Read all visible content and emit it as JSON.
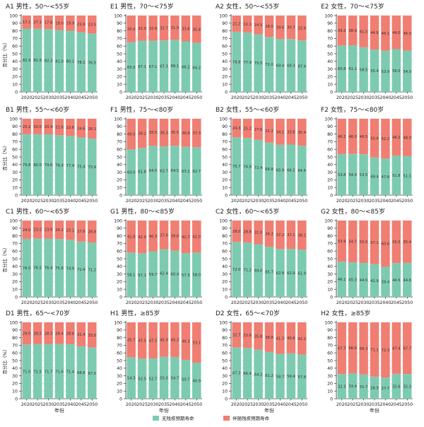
{
  "colors": {
    "disability_free": "#7ccbb0",
    "with_disability": "#f07e72",
    "axis": "#333333",
    "grid": "#999999"
  },
  "legend": {
    "disability_free": "无残疾预期寿命",
    "with_disability": "伴随残疾预期寿命"
  },
  "shared": {
    "ylabel": "百分比（%）",
    "xlabel": "年份",
    "years": [
      "2020",
      "2025",
      "2030",
      "2035",
      "2040",
      "2045",
      "2050"
    ],
    "yticks": [
      0,
      10,
      20,
      30,
      40,
      50,
      60,
      70,
      80,
      90,
      100
    ]
  },
  "chart_data": [
    {
      "type": "bar",
      "stacked": true,
      "title": "A1 男性，50～<55岁",
      "categories": [
        "2020",
        "2025",
        "2030",
        "2035",
        "2040",
        "2045",
        "2050"
      ],
      "ylim": [
        0,
        100
      ],
      "series": [
        {
          "name": "无残疾预期寿命",
          "values": [
            82.9,
            82.9,
            82.2,
            81.0,
            80.1,
            78.1,
            76.5
          ]
        },
        {
          "name": "伴随残疾预期寿命",
          "values": [
            17.1,
            17.1,
            17.8,
            19.0,
            19.9,
            21.9,
            23.5
          ]
        }
      ]
    },
    {
      "type": "bar",
      "stacked": true,
      "title": "E1 男性，70～<75岁",
      "categories": [
        "2020",
        "2025",
        "2030",
        "2035",
        "2040",
        "2045",
        "2050"
      ],
      "ylim": [
        0,
        100
      ],
      "series": [
        {
          "name": "无残疾预期寿命",
          "values": [
            65.0,
            67.1,
            67.1,
            67.3,
            68.1,
            66.2,
            64.2
          ]
        },
        {
          "name": "伴随残疾预期寿命",
          "values": [
            35.0,
            32.9,
            32.9,
            32.7,
            31.9,
            33.8,
            35.8
          ]
        }
      ]
    },
    {
      "type": "bar",
      "stacked": true,
      "title": "A2 女性，50～<55岁",
      "categories": [
        "2020",
        "2025",
        "2030",
        "2035",
        "2040",
        "2045",
        "2050"
      ],
      "ylim": [
        0,
        100
      ],
      "series": [
        {
          "name": "无残疾预期寿命",
          "values": [
            78.8,
            77.9,
            75.5,
            72.0,
            69.4,
            69.3,
            67.4
          ]
        },
        {
          "name": "伴随残疾预期寿命",
          "values": [
            21.2,
            22.1,
            24.5,
            28.0,
            30.6,
            30.7,
            32.6
          ]
        }
      ]
    },
    {
      "type": "bar",
      "stacked": true,
      "title": "E2 女性，70～<75岁",
      "categories": [
        "2020",
        "2025",
        "2030",
        "2035",
        "2040",
        "2045",
        "2050"
      ],
      "ylim": [
        0,
        100
      ],
      "series": [
        {
          "name": "无残疾预期寿命",
          "values": [
            60.8,
            61.1,
            58.5,
            55.4,
            53.9,
            56.0,
            54.0
          ]
        },
        {
          "name": "伴随残疾预期寿命",
          "values": [
            39.2,
            38.9,
            41.5,
            44.6,
            46.1,
            44.0,
            46.0
          ]
        }
      ]
    },
    {
      "type": "bar",
      "stacked": true,
      "title": "B1 男性，55～<60岁",
      "categories": [
        "2020",
        "2025",
        "2030",
        "2035",
        "2040",
        "2045",
        "2050"
      ],
      "ylim": [
        0,
        100
      ],
      "series": [
        {
          "name": "无残疾预期寿命",
          "values": [
            79.8,
            80.0,
            79.6,
            78.4,
            77.4,
            75.4,
            73.9
          ]
        },
        {
          "name": "伴随残疾预期寿命",
          "values": [
            20.2,
            20.0,
            20.4,
            21.6,
            22.6,
            24.6,
            26.1
          ]
        }
      ]
    },
    {
      "type": "bar",
      "stacked": true,
      "title": "F1 男性，75～<80岁",
      "categories": [
        "2020",
        "2025",
        "2030",
        "2035",
        "2040",
        "2045",
        "2050"
      ],
      "ylim": [
        0,
        100
      ],
      "series": [
        {
          "name": "无残疾预期寿命",
          "values": [
            60.0,
            61.8,
            64.5,
            63.7,
            64.5,
            63.1,
            62.7
          ]
        },
        {
          "name": "伴随残疾预期寿命",
          "values": [
            40.0,
            38.2,
            35.5,
            36.3,
            35.5,
            36.9,
            37.3
          ]
        }
      ]
    },
    {
      "type": "bar",
      "stacked": true,
      "title": "B2 女性，55～<60岁",
      "categories": [
        "2020",
        "2025",
        "2030",
        "2035",
        "2040",
        "2045",
        "2050"
      ],
      "ylim": [
        0,
        100
      ],
      "series": [
        {
          "name": "无残疾预期寿命",
          "values": [
            75.7,
            74.8,
            72.4,
            68.8,
            65.9,
            66.2,
            64.6
          ]
        },
        {
          "name": "伴随残疾预期寿命",
          "values": [
            24.3,
            25.2,
            27.6,
            31.2,
            34.1,
            33.8,
            35.4
          ]
        }
      ]
    },
    {
      "type": "bar",
      "stacked": true,
      "title": "F2 女性，75～<80岁",
      "categories": [
        "2020",
        "2025",
        "2030",
        "2035",
        "2040",
        "2045",
        "2050"
      ],
      "ylim": [
        0,
        100
      ],
      "series": [
        {
          "name": "无残疾预期寿命",
          "values": [
            53.8,
            54.0,
            53.5,
            49.4,
            47.8,
            51.8,
            51.1
          ]
        },
        {
          "name": "伴随残疾预期寿命",
          "values": [
            46.2,
            46.0,
            46.5,
            50.6,
            52.2,
            48.2,
            48.9
          ]
        }
      ]
    },
    {
      "type": "bar",
      "stacked": true,
      "title": "C1 男性，60～<65岁",
      "categories": [
        "2020",
        "2025",
        "2030",
        "2035",
        "2040",
        "2045",
        "2050"
      ],
      "ylim": [
        0,
        100
      ],
      "series": [
        {
          "name": "无残疾预期寿命",
          "values": [
            76.0,
            76.5,
            76.4,
            75.8,
            74.9,
            72.4,
            71.2
          ]
        },
        {
          "name": "伴随残疾预期寿命",
          "values": [
            24.0,
            23.5,
            23.6,
            24.2,
            25.1,
            27.6,
            28.8
          ]
        }
      ]
    },
    {
      "type": "bar",
      "stacked": true,
      "title": "G1 男性，80～<85岁",
      "categories": [
        "2020",
        "2025",
        "2030",
        "2035",
        "2040",
        "2045",
        "2050"
      ],
      "ylim": [
        0,
        100
      ],
      "series": [
        {
          "name": "无残疾预期寿命",
          "values": [
            58.1,
            57.1,
            59.7,
            62.4,
            60.4,
            57.3,
            58.0
          ]
        },
        {
          "name": "伴随残疾预期寿命",
          "values": [
            41.9,
            42.9,
            40.3,
            37.6,
            39.6,
            42.7,
            42.0
          ]
        }
      ]
    },
    {
      "type": "bar",
      "stacked": true,
      "title": "C2 女性，60～<65岁",
      "categories": [
        "2020",
        "2025",
        "2030",
        "2035",
        "2040",
        "2045",
        "2050"
      ],
      "ylim": [
        0,
        100
      ],
      "series": [
        {
          "name": "无残疾预期寿命",
          "values": [
            72.0,
            71.2,
            69.0,
            65.7,
            62.8,
            62.9,
            61.9
          ]
        },
        {
          "name": "伴随残疾预期寿命",
          "values": [
            28.0,
            28.8,
            31.0,
            34.3,
            37.2,
            37.1,
            38.1
          ]
        }
      ]
    },
    {
      "type": "bar",
      "stacked": true,
      "title": "G2 女性，80～<85岁",
      "categories": [
        "2020",
        "2025",
        "2030",
        "2035",
        "2040",
        "2045",
        "2050"
      ],
      "ylim": [
        0,
        100
      ],
      "series": [
        {
          "name": "无残疾预期寿命",
          "values": [
            46.1,
            45.3,
            44.5,
            42.9,
            39.4,
            44.5,
            44.6
          ]
        },
        {
          "name": "伴随残疾预期寿命",
          "values": [
            53.9,
            54.7,
            55.5,
            57.1,
            60.6,
            55.5,
            55.4
          ]
        }
      ]
    },
    {
      "type": "bar",
      "stacked": true,
      "title": "D1 男性，65～<70岁",
      "categories": [
        "2020",
        "2025",
        "2030",
        "2035",
        "2040",
        "2045",
        "2050"
      ],
      "ylim": [
        0,
        100
      ],
      "series": [
        {
          "name": "无残疾预期寿命",
          "values": [
            71.0,
            71.5,
            71.7,
            71.6,
            71.4,
            68.6,
            67.0
          ]
        },
        {
          "name": "伴随残疾预期寿命",
          "values": [
            29.0,
            28.5,
            28.3,
            28.4,
            28.6,
            31.4,
            33.0
          ]
        }
      ]
    },
    {
      "type": "bar",
      "stacked": true,
      "title": "H1 男性，≥85岁",
      "categories": [
        "2020",
        "2025",
        "2030",
        "2035",
        "2040",
        "2045",
        "2050"
      ],
      "ylim": [
        0,
        100
      ],
      "series": [
        {
          "name": "无残疾预期寿命",
          "values": [
            54.3,
            52.5,
            52.7,
            55.0,
            54.7,
            50.7,
            46.9
          ]
        },
        {
          "name": "伴随残疾预期寿命",
          "values": [
            45.7,
            47.5,
            47.3,
            45.0,
            45.3,
            49.3,
            53.1
          ]
        }
      ]
    },
    {
      "type": "bar",
      "stacked": true,
      "title": "D2 女性，65～<70岁",
      "categories": [
        "2020",
        "2025",
        "2030",
        "2035",
        "2040",
        "2045",
        "2050"
      ],
      "ylim": [
        0,
        100
      ],
      "series": [
        {
          "name": "无残疾预期寿命",
          "values": [
            67.3,
            66.4,
            64.2,
            61.2,
            58.7,
            59.4,
            57.8
          ]
        },
        {
          "name": "伴随残疾预期寿命",
          "values": [
            32.7,
            33.6,
            35.8,
            38.8,
            41.3,
            40.6,
            42.2
          ]
        }
      ]
    },
    {
      "type": "bar",
      "stacked": true,
      "title": "H2 女性，≥85岁",
      "categories": [
        "2020",
        "2025",
        "2030",
        "2035",
        "2040",
        "2045",
        "2050"
      ],
      "ylim": [
        0,
        100
      ],
      "series": [
        {
          "name": "无残疾预期寿命",
          "values": [
            32.3,
            33.4,
            31.7,
            28.9,
            27.7,
            32.6,
            32.3
          ]
        },
        {
          "name": "伴随残疾预期寿命",
          "values": [
            67.7,
            66.6,
            68.3,
            71.1,
            72.3,
            67.4,
            67.7
          ]
        }
      ]
    }
  ]
}
